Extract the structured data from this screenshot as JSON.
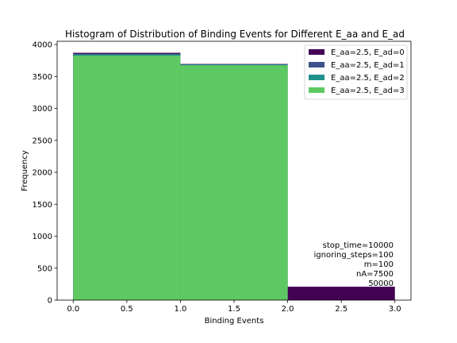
{
  "chart_data": {
    "type": "histogram",
    "title": "Histogram of Distribution of Binding Events for Different E_aa and E_ad",
    "xlabel": "Binding Events",
    "ylabel": "Frequency",
    "xlim": [
      -0.15,
      3.15
    ],
    "ylim": [
      0,
      4050
    ],
    "xticks": [
      "0.0",
      "0.5",
      "1.0",
      "1.5",
      "2.0",
      "2.5",
      "3.0"
    ],
    "yticks": [
      "0",
      "500",
      "1000",
      "1500",
      "2000",
      "2500",
      "3000",
      "3500",
      "4000"
    ],
    "bins": [
      [
        0,
        1
      ],
      [
        1,
        2
      ],
      [
        2,
        3
      ]
    ],
    "series": [
      {
        "name": "E_aa=2.5, E_ad=0",
        "color": "#440154",
        "values": [
          3870,
          3695,
          210
        ]
      },
      {
        "name": "E_aa=2.5, E_ad=1",
        "color": "#3b528b",
        "values": [
          3855,
          3690,
          0
        ]
      },
      {
        "name": "E_aa=2.5, E_ad=2",
        "color": "#21918c",
        "values": [
          3845,
          3685,
          0
        ]
      },
      {
        "name": "E_aa=2.5, E_ad=3",
        "color": "#5ec962",
        "values": [
          3825,
          3675,
          0
        ]
      }
    ],
    "legend_position": "top-right",
    "grid": false,
    "annotation": [
      "stop_time=10000",
      "ignoring_steps=100",
      "m=100",
      "nA=7500",
      "50000"
    ]
  }
}
